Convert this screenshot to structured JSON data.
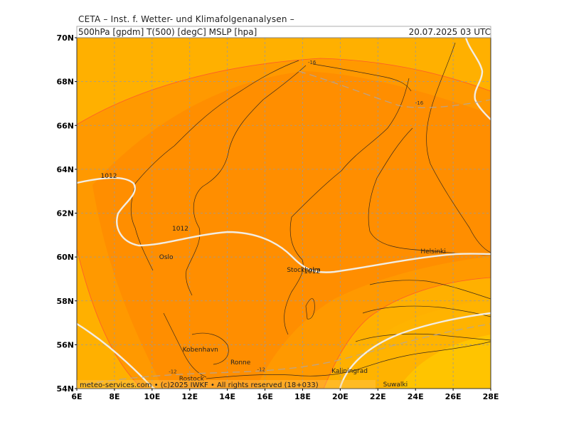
{
  "header": {
    "title": "CETA – Inst. f. Wetter- und Klimafolgenanalysen –",
    "params": "500hPa [gpdm] T(500) [degC] MSLP [hpa]",
    "date": "20.07.2025 03 UTC"
  },
  "map": {
    "lon_min": 6,
    "lon_max": 28,
    "lat_min": 54,
    "lat_max": 70,
    "lat_labels": [
      "70N",
      "68N",
      "66N",
      "64N",
      "62N",
      "60N",
      "58N",
      "56N",
      "54N"
    ],
    "lon_labels": [
      "6E",
      "8E",
      "10E",
      "12E",
      "14E",
      "16E",
      "18E",
      "20E",
      "22E",
      "24E",
      "26E",
      "28E"
    ],
    "cities": [
      {
        "name": "Oslo",
        "lon": 10.75,
        "lat": 59.9
      },
      {
        "name": "Stockholm",
        "lon": 18.06,
        "lat": 59.33
      },
      {
        "name": "Helsinki",
        "lon": 24.94,
        "lat": 60.17
      },
      {
        "name": "Kobenhavn",
        "lon": 12.57,
        "lat": 55.68
      },
      {
        "name": "Ronne",
        "lon": 14.7,
        "lat": 55.1
      },
      {
        "name": "Rostock",
        "lon": 12.1,
        "lat": 54.35
      },
      {
        "name": "Kaliningrad",
        "lon": 20.5,
        "lat": 54.71
      },
      {
        "name": "Suwalki",
        "lon": 22.93,
        "lat": 54.1
      }
    ],
    "isobar_labels": [
      {
        "text": "1012",
        "lon": 7.7,
        "lat": 63.6
      },
      {
        "text": "1012",
        "lon": 11.5,
        "lat": 61.2
      },
      {
        "text": "1012",
        "lon": 18.5,
        "lat": 59.25
      }
    ],
    "temp_labels": [
      {
        "text": "-16",
        "lon": 18.5,
        "lat": 68.8
      },
      {
        "text": "-16",
        "lon": 24.2,
        "lat": 66.95
      },
      {
        "text": "-12",
        "lon": 11.1,
        "lat": 54.7
      },
      {
        "text": "-12",
        "lon": 15.8,
        "lat": 54.8
      }
    ],
    "footer": "meteo-services.com • (c)2025 IWKF • All rights reserved (18+033)",
    "colors": {
      "outer": "#ffb000",
      "band": "#ff9900",
      "core": "#ff8a00",
      "warm": "#ffc400",
      "isobar": "#f0e8d8",
      "grid": "#9a9a9a",
      "border": "#333333"
    }
  }
}
